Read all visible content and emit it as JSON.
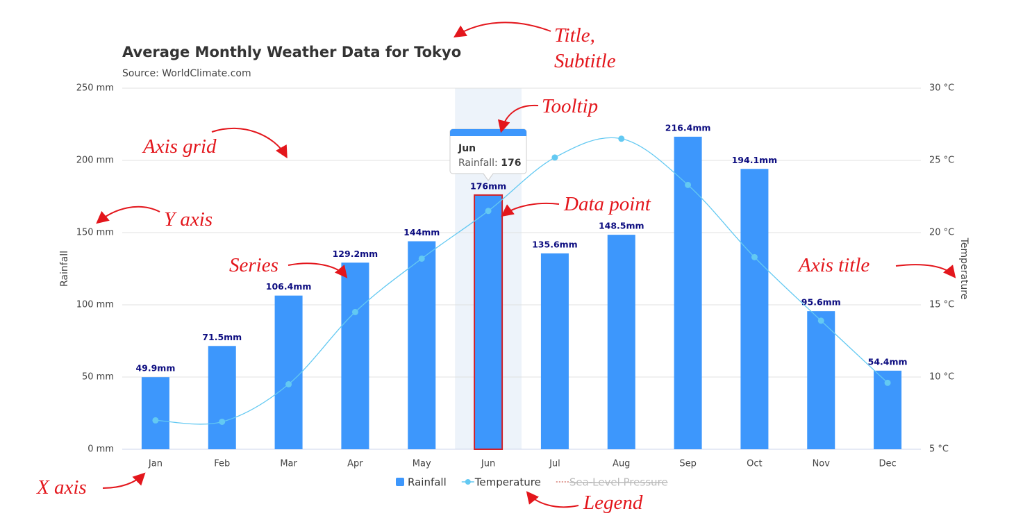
{
  "chart_data": {
    "type": "combo",
    "title": "Average Monthly Weather Data for Tokyo",
    "subtitle": "Source: WorldClimate.com",
    "y_axis_title": "Rainfall",
    "y2_axis_title": "Temperature",
    "categories": [
      "Jan",
      "Feb",
      "Mar",
      "Apr",
      "May",
      "Jun",
      "Jul",
      "Aug",
      "Sep",
      "Oct",
      "Nov",
      "Dec"
    ],
    "series": [
      {
        "name": "Rainfall",
        "type": "bar",
        "color": "#3d97fc",
        "values": [
          49.9,
          71.5,
          106.4,
          129.2,
          144,
          176,
          135.6,
          148.5,
          216.4,
          194.1,
          95.6,
          54.4
        ],
        "value_labels": [
          "49.9mm",
          "71.5mm",
          "106.4mm",
          "129.2mm",
          "144mm",
          "176mm",
          "135.6mm",
          "148.5mm",
          "216.4mm",
          "194.1mm",
          "95.6mm",
          "54.4mm"
        ]
      },
      {
        "name": "Temperature",
        "type": "spline",
        "axis": "y2",
        "color": "#63c9f2",
        "values": [
          7.0,
          6.9,
          9.5,
          14.5,
          18.2,
          21.5,
          25.2,
          26.5,
          23.3,
          18.3,
          13.9,
          9.6
        ]
      },
      {
        "name": "Sea-Level Pressure",
        "type": "line",
        "color": "#c0392b",
        "visible": false
      }
    ],
    "ylim": [
      0,
      250
    ],
    "yticks": [
      {
        "value": 0,
        "label": "0 mm"
      },
      {
        "value": 50,
        "label": "50 mm"
      },
      {
        "value": 100,
        "label": "100 mm"
      },
      {
        "value": 150,
        "label": "150 mm"
      },
      {
        "value": 200,
        "label": "200 mm"
      },
      {
        "value": 250,
        "label": "250 mm"
      }
    ],
    "y2lim": [
      5,
      30
    ],
    "y2ticks": [
      {
        "value": 5,
        "label": "5 °C"
      },
      {
        "value": 10,
        "label": "10 °C"
      },
      {
        "value": 15,
        "label": "15 °C"
      },
      {
        "value": 20,
        "label": "20 °C"
      },
      {
        "value": 25,
        "label": "25 °C"
      },
      {
        "value": 30,
        "label": "30 °C"
      }
    ],
    "grid": true,
    "legend": "bottom",
    "hover_index": 5,
    "tooltip": {
      "title": "Jun",
      "label": "Rainfall:",
      "value": 176
    }
  },
  "annotations": [
    "Title,",
    "Subtitle",
    "Tooltip",
    "Axis grid",
    "Y axis",
    "Data point",
    "Series",
    "Axis title",
    "X axis",
    "Legend"
  ]
}
